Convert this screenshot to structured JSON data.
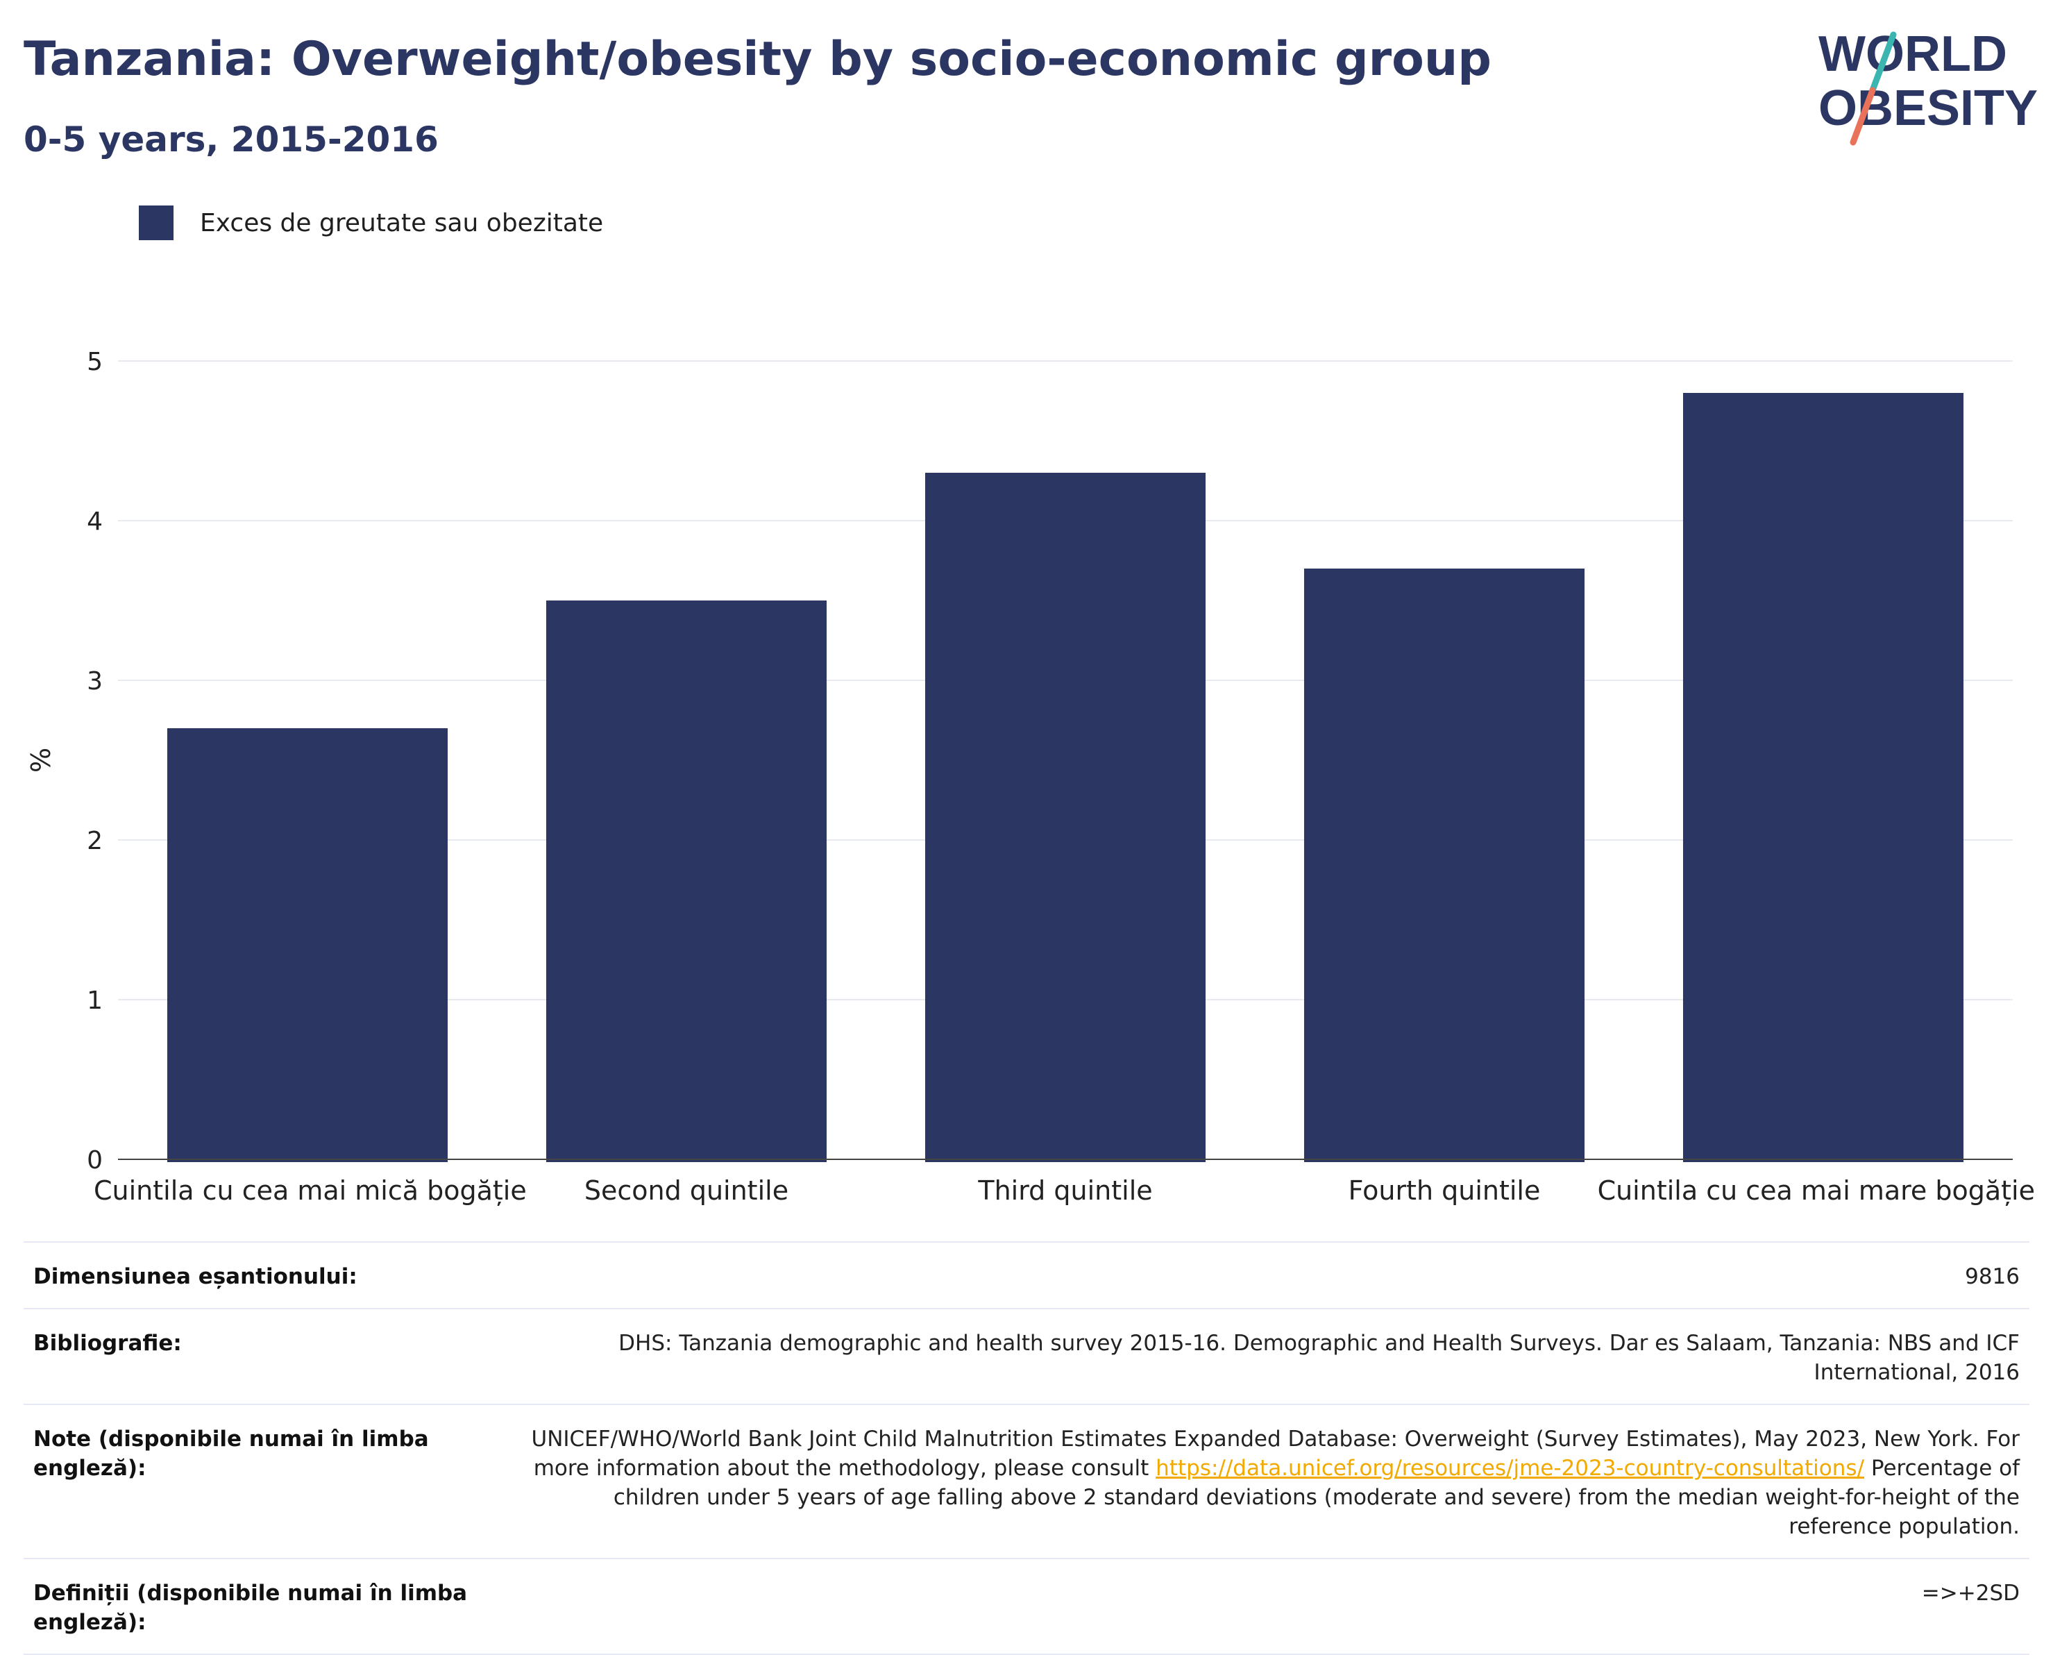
{
  "header": {
    "title": "Tanzania: Overweight/obesity by socio-economic group",
    "subtitle": "0-5 years, 2015-2016"
  },
  "logo": {
    "line1": "WORLD",
    "line2": "OBESITY",
    "colors": {
      "text": "#2b3663",
      "slash_top": "#3ab5b0",
      "slash_bottom": "#e8735a"
    }
  },
  "legend": {
    "label": "Exces de greutate sau obezitate",
    "color": "#2b3663"
  },
  "chart_data": {
    "type": "bar",
    "categories": [
      "Cuintila cu cea mai mică bogăție",
      "Second quintile",
      "Third quintile",
      "Fourth quintile",
      "Cuintila cu cea mai mare bogăție"
    ],
    "series": [
      {
        "name": "Exces de greutate sau obezitate",
        "values": [
          2.7,
          3.5,
          4.3,
          3.7,
          4.8
        ],
        "color": "#2b3663"
      }
    ],
    "ylabel": "%",
    "ylim": [
      0,
      5
    ],
    "yticks": [
      0,
      1,
      2,
      3,
      4,
      5
    ],
    "grid": true,
    "legend_position": "top-left"
  },
  "meta": {
    "sample_size_label": "Dimensiunea eșantionului:",
    "sample_size_value": "9816",
    "bibliography_label": "Bibliografie:",
    "bibliography_value": "DHS: Tanzania demographic and health survey 2015-16. Demographic and Health Surveys. Dar es Salaam, Tanzania: NBS and ICF International, 2016",
    "notes_label": "Note (disponibile numai în limba engleză):",
    "notes_text_before": "UNICEF/WHO/World Bank Joint Child Malnutrition Estimates Expanded Database: Overweight (Survey Estimates), May 2023, New York. For more information about the methodology, please consult ",
    "notes_link": "https://data.unicef.org/resources/jme-2023-country-consultations/",
    "notes_text_after": " Percentage of children under 5 years of age falling above 2 standard deviations (moderate and severe) from the median weight-for-height of the reference population.",
    "definitions_label": "Definiții (disponibile numai în limba engleză):",
    "definitions_value": "=>+2SD"
  }
}
